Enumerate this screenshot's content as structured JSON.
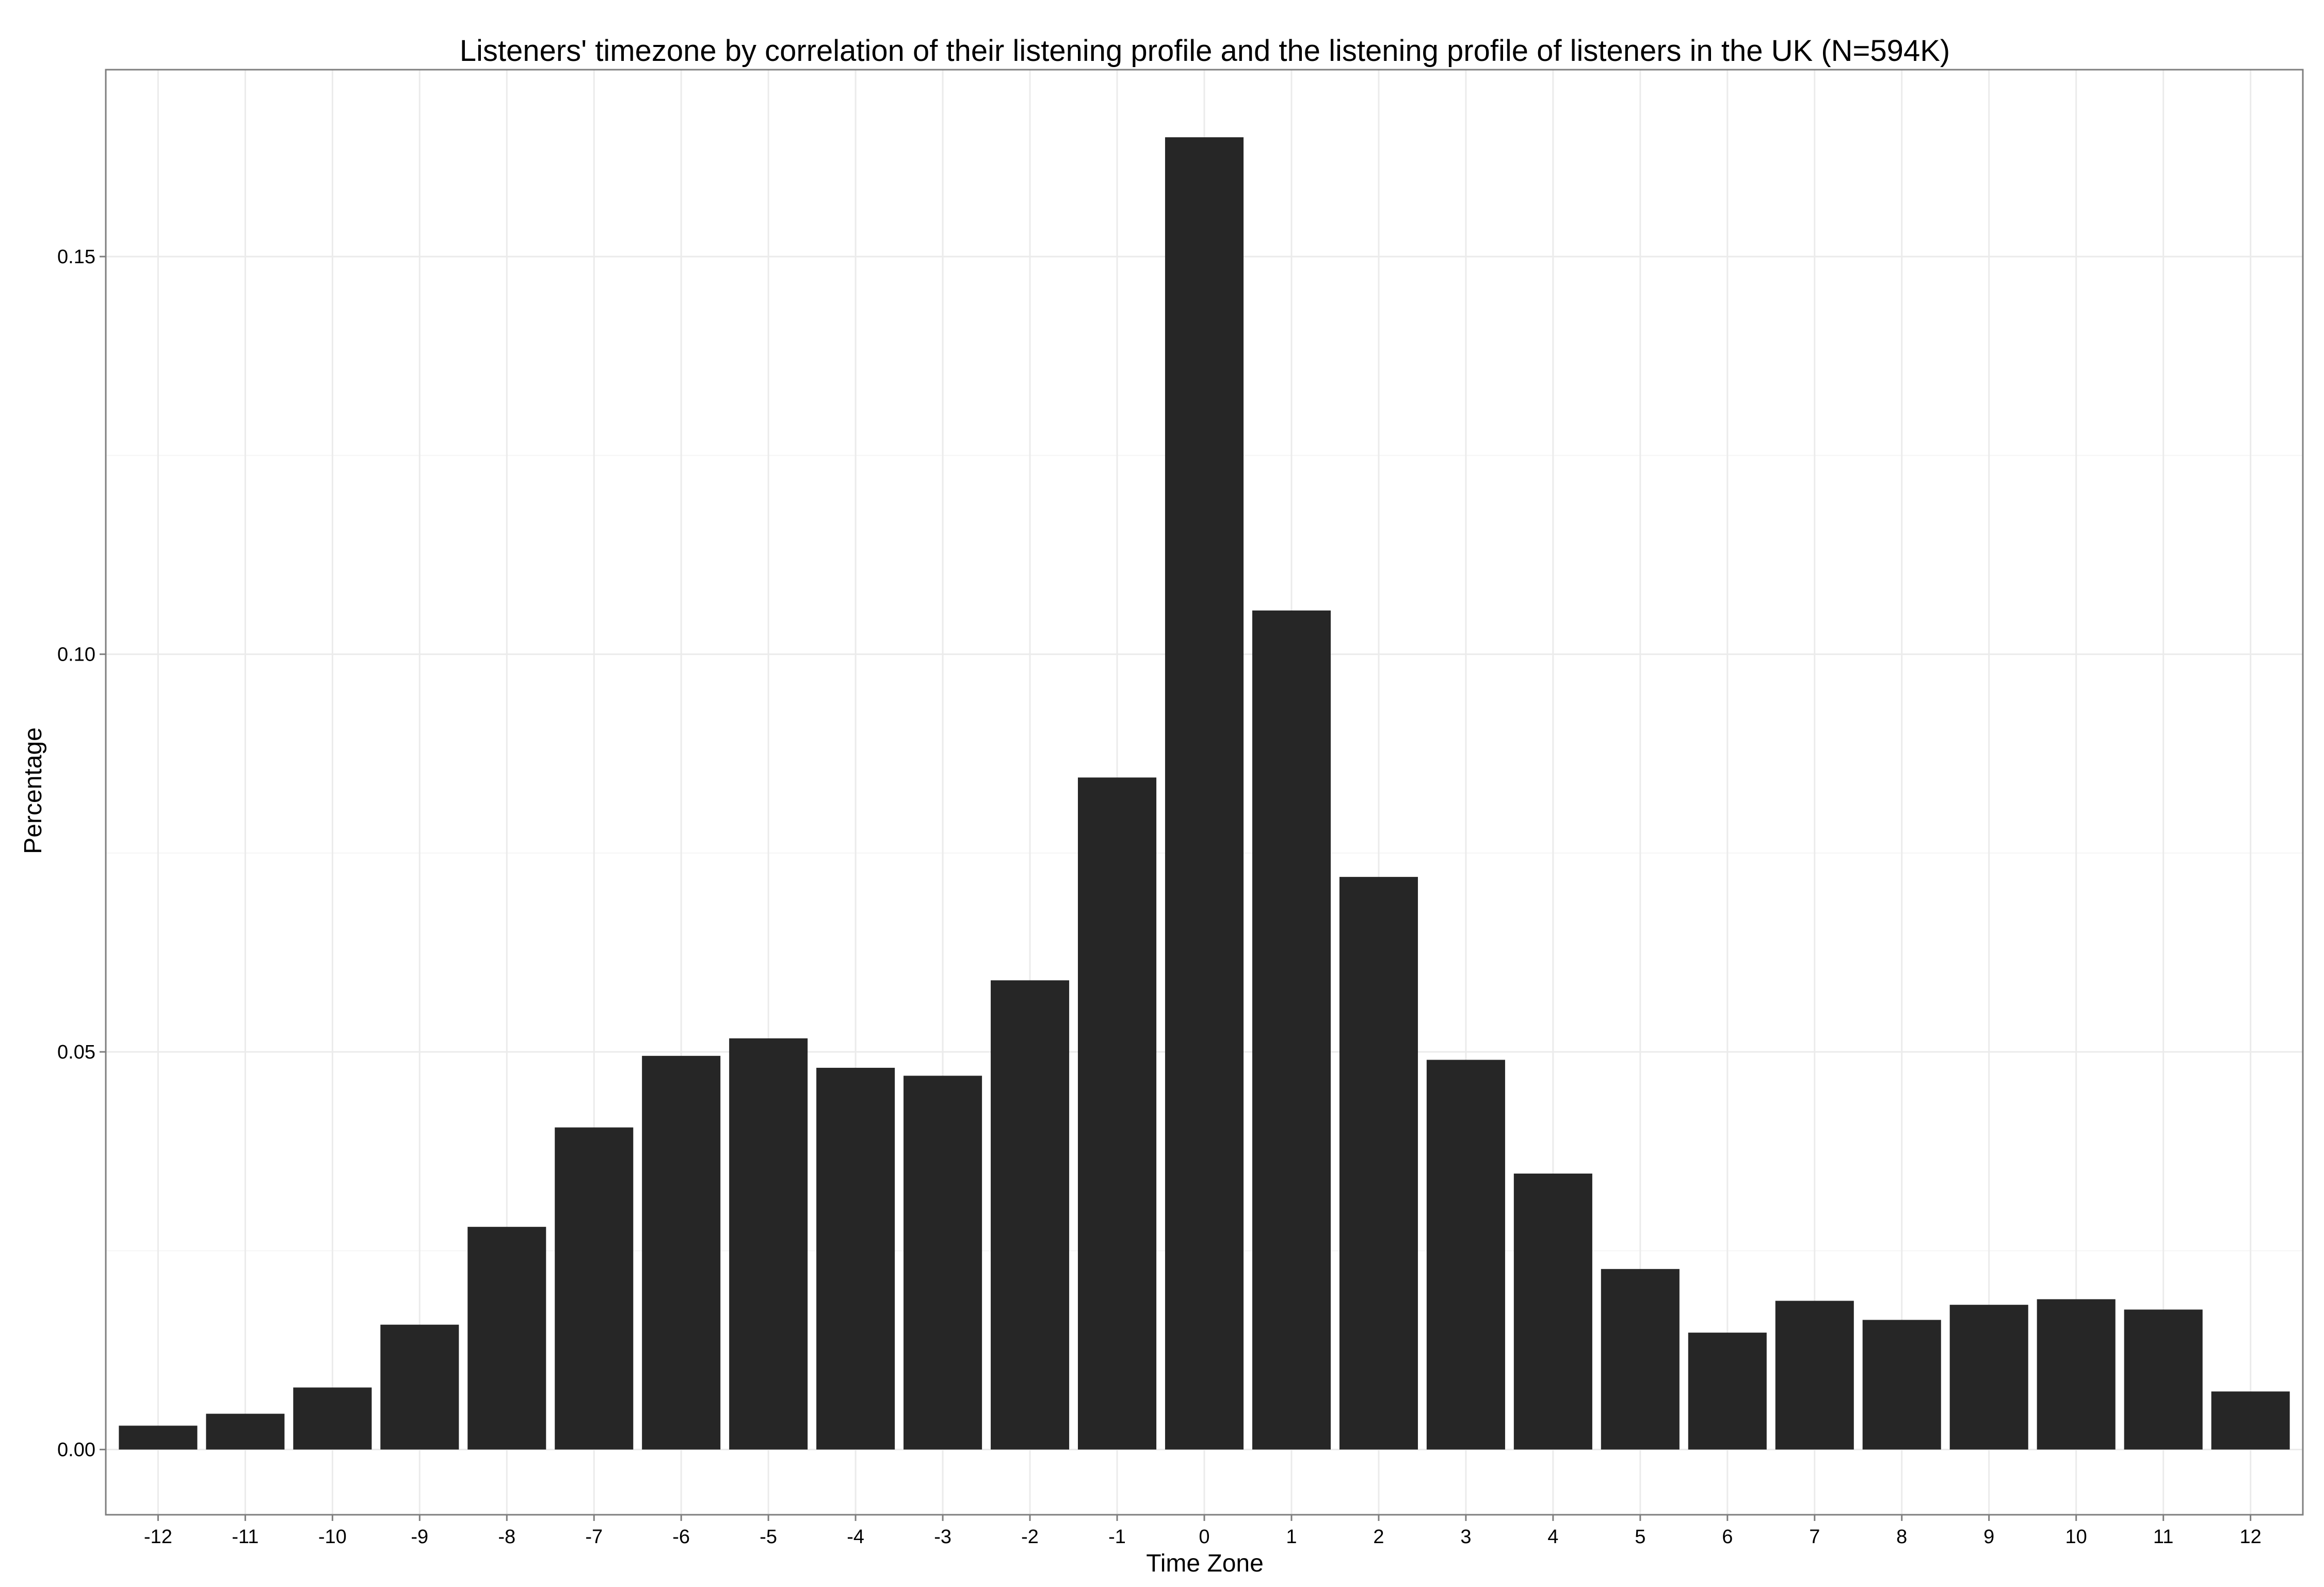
{
  "chart_data": {
    "type": "bar",
    "title": "Listeners' timezone by correlation of their listening profile and the listening profile of listeners in the UK (N=594K)",
    "xlabel": "Time Zone",
    "ylabel": "Percentage",
    "categories": [
      "-12",
      "-11",
      "-10",
      "-9",
      "-8",
      "-7",
      "-6",
      "-5",
      "-4",
      "-3",
      "-2",
      "-1",
      "0",
      "1",
      "2",
      "3",
      "4",
      "5",
      "6",
      "7",
      "8",
      "9",
      "10",
      "11",
      "12"
    ],
    "values": [
      0.003,
      0.0045,
      0.0078,
      0.0157,
      0.028,
      0.0405,
      0.0495,
      0.0517,
      0.048,
      0.047,
      0.059,
      0.0845,
      0.165,
      0.1055,
      0.072,
      0.049,
      0.0347,
      0.0227,
      0.0147,
      0.0187,
      0.0163,
      0.0182,
      0.0189,
      0.0176,
      0.0073
    ],
    "ylim": [
      -0.0082,
      0.1735
    ],
    "yticks": [
      "0.00",
      "0.05",
      "0.10",
      "0.15"
    ],
    "grid": true,
    "legend": "none",
    "colors": {
      "bar": "#262626",
      "panel_background": "#ffffff",
      "grid_major": "#ebebeb",
      "grid_minor": "#f5f5f5",
      "panel_border": "#7f7f7f",
      "tick": "#7f7f7f"
    }
  }
}
